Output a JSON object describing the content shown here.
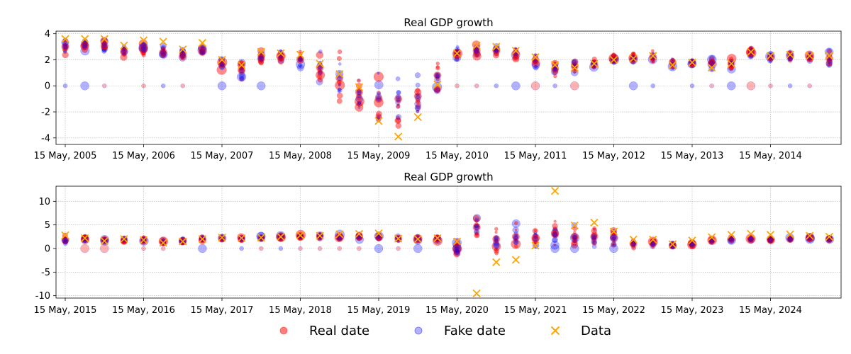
{
  "chart_data": [
    {
      "type": "scatter",
      "title": "Real GDP growth",
      "xlabel": "",
      "ylabel": "",
      "ylim": [
        -4.5,
        4.2
      ],
      "yticks": [
        -4,
        -2,
        0,
        2,
        4
      ],
      "xtick_labels": [
        "15 May, 2005",
        "15 May, 2006",
        "15 May, 2007",
        "15 May, 2008",
        "15 May, 2009",
        "15 May, 2010",
        "15 May, 2011",
        "15 May, 2012",
        "15 May, 2013",
        "15 May, 2014"
      ],
      "grid": true,
      "quarters_per_year": 4,
      "data_series_name": "Data",
      "data_values": [
        3.6,
        3.6,
        3.6,
        3.1,
        3.5,
        3.4,
        2.8,
        3.3,
        2.0,
        1.6,
        2.6,
        2.5,
        2.4,
        1.7,
        0.9,
        -0.1,
        -2.7,
        -3.9,
        -2.4,
        0.1,
        2.5,
        3.1,
        3.0,
        2.7,
        2.2,
        1.6,
        1.4,
        1.7,
        2.0,
        2.1,
        2.3,
        1.6,
        1.8,
        1.4,
        1.7,
        2.6,
        2.3,
        2.4,
        2.3,
        2.3
      ],
      "estimate_centers": [
        3.0,
        3.1,
        3.1,
        2.6,
        2.8,
        2.6,
        2.3,
        2.6,
        1.7,
        1.2,
        2.1,
        2.3,
        2.0,
        1.4,
        0.6,
        -0.5,
        -1.0,
        -1.0,
        -0.8,
        0.8,
        2.5,
        2.7,
        2.7,
        2.5,
        2.0,
        1.3,
        1.5,
        1.7,
        2.0,
        2.1,
        2.2,
        1.8,
        1.8,
        1.7,
        1.7,
        2.6,
        2.2,
        2.3,
        2.2,
        2.1
      ],
      "estimate_spread": [
        0.5,
        0.5,
        0.5,
        0.4,
        0.5,
        0.4,
        0.5,
        0.4,
        0.4,
        0.6,
        0.5,
        0.5,
        0.6,
        1.2,
        1.6,
        1.8,
        1.8,
        1.7,
        1.6,
        1.3,
        0.5,
        0.4,
        0.4,
        0.4,
        0.5,
        0.5,
        0.5,
        0.4,
        0.4,
        0.4,
        0.4,
        0.4,
        0.4,
        0.4,
        0.4,
        0.4,
        0.3,
        0.3,
        0.3,
        0.6
      ],
      "zero_estimates": [
        1,
        1,
        1,
        0,
        1,
        1,
        1,
        0,
        1,
        0,
        1,
        0,
        0,
        0,
        0,
        0,
        0,
        0,
        0,
        0,
        1,
        1,
        1,
        1,
        1,
        1,
        1,
        0,
        0,
        1,
        1,
        0,
        1,
        1,
        1,
        1,
        1,
        1,
        1,
        0
      ]
    },
    {
      "type": "scatter",
      "title": "Real GDP growth",
      "xlabel": "",
      "ylabel": "",
      "ylim": [
        -10.5,
        13.2
      ],
      "yticks": [
        -10,
        -5,
        0,
        5,
        10
      ],
      "xtick_labels": [
        "15 May, 2015",
        "15 May, 2016",
        "15 May, 2017",
        "15 May, 2018",
        "15 May, 2019",
        "15 May, 2020",
        "15 May, 2021",
        "15 May, 2022",
        "15 May, 2023",
        "15 May, 2024"
      ],
      "grid": true,
      "quarters_per_year": 4,
      "data_series_name": "Data",
      "data_values": [
        2.8,
        2.2,
        1.6,
        2.0,
        1.8,
        1.2,
        1.5,
        2.0,
        2.3,
        2.2,
        2.3,
        2.5,
        2.8,
        2.7,
        3.0,
        3.1,
        3.2,
        2.1,
        2.0,
        2.2,
        1.5,
        -9.5,
        -2.9,
        -2.4,
        0.6,
        12.2,
        4.9,
        5.5,
        3.6,
        1.9,
        1.9,
        0.9,
        1.7,
        2.4,
        2.9,
        3.1,
        2.9,
        3.0,
        2.7,
        2.5
      ],
      "estimate_centers": [
        1.8,
        2.1,
        1.8,
        1.9,
        1.8,
        1.4,
        1.6,
        2.0,
        2.2,
        2.0,
        2.2,
        2.4,
        2.6,
        2.6,
        2.4,
        2.5,
        2.6,
        2.1,
        2.0,
        2.1,
        -0.2,
        4.5,
        2.0,
        2.5,
        2.0,
        3.0,
        2.5,
        2.5,
        2.3,
        1.0,
        1.1,
        0.6,
        1.0,
        1.8,
        2.0,
        2.0,
        1.9,
        2.0,
        2.2,
        2.0
      ],
      "estimate_spread": [
        0.9,
        0.5,
        0.5,
        0.4,
        0.5,
        0.5,
        0.4,
        0.4,
        0.4,
        0.4,
        0.4,
        0.4,
        0.4,
        0.4,
        0.5,
        0.5,
        0.5,
        0.4,
        0.4,
        0.5,
        1.6,
        2.5,
        2.5,
        2.7,
        1.8,
        2.2,
        2.0,
        1.8,
        1.5,
        0.8,
        0.8,
        0.5,
        0.5,
        0.4,
        0.4,
        0.4,
        0.3,
        0.3,
        0.3,
        0.3
      ],
      "zero_estimates": [
        0,
        1,
        1,
        0,
        1,
        1,
        0,
        1,
        0,
        1,
        1,
        1,
        1,
        1,
        1,
        1,
        1,
        1,
        1,
        0,
        1,
        0,
        0,
        0,
        0,
        1,
        1,
        0,
        1,
        0,
        0,
        0,
        0,
        0,
        0,
        0,
        0,
        0,
        0,
        0
      ]
    }
  ],
  "legend": {
    "items": [
      {
        "label": "Real date",
        "color": "#ff0000",
        "marker": "circle"
      },
      {
        "label": "Fake date",
        "color": "#0000ff",
        "marker": "circle"
      },
      {
        "label": "Data",
        "color": "#ffa500",
        "marker": "x"
      }
    ],
    "placement": "bottom-center"
  },
  "colors": {
    "real": "#ff0000",
    "fake": "#0000ff",
    "data": "#ffa500"
  }
}
